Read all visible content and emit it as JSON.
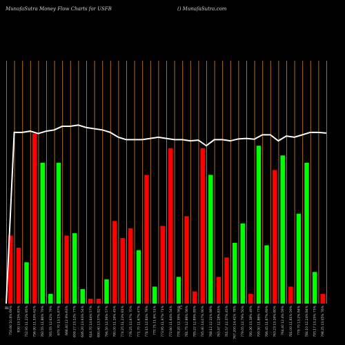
{
  "header": {
    "title_left": "MunafaSutra  Money Flow  Charts for USFB",
    "title_right": "() MunafaSutra.com"
  },
  "markers": {
    "left_m": "m",
    "center_c": "C"
  },
  "colors": {
    "up": "#00ff00",
    "down": "#ff0000",
    "grid": "#b26a1e",
    "line": "#ffffff",
    "background": "#000000",
    "text": "#cfcfcf"
  },
  "chart_data": {
    "type": "bar",
    "bars": [
      {
        "label": "750.60 10.8% 69%",
        "value": 28,
        "dir": "down"
      },
      {
        "label": "830 13.15% 83%",
        "value": 23,
        "dir": "down"
      },
      {
        "label": "752.95 11.22% 85%",
        "value": 17,
        "dir": "up"
      },
      {
        "label": "756.90 11.53% 62%",
        "value": 70,
        "dir": "down"
      },
      {
        "label": "760.55 11.86% 79%",
        "value": 58,
        "dir": "up"
      },
      {
        "label": "765.55 12.62% 79%",
        "value": 4,
        "dir": "up"
      },
      {
        "label": "670.70 13.1% 87%",
        "value": 58,
        "dir": "up"
      },
      {
        "label": "668.40 12.9% 63%",
        "value": 28,
        "dir": "down"
      },
      {
        "label": "659.27 13.12% 77%",
        "value": 29,
        "dir": "up"
      },
      {
        "label": "646.20 13.93% 54%",
        "value": 6,
        "dir": "up"
      },
      {
        "label": "614.70 14.64% 57%",
        "value": 2,
        "dir": "down"
      },
      {
        "label": "690.40 13.37% 82%",
        "value": 2,
        "dir": "down"
      },
      {
        "label": "794.50 12.56% 57%",
        "value": 10,
        "dir": "up"
      },
      {
        "label": "780.00 11.16% 45%",
        "value": 34,
        "dir": "down"
      },
      {
        "label": "774.25 11.23% 81%",
        "value": 27,
        "dir": "down"
      },
      {
        "label": "776.25 12.87% 70%",
        "value": 31,
        "dir": "down"
      },
      {
        "label": "771.70 11.67% 47%",
        "value": 22,
        "dir": "up"
      },
      {
        "label": "774.15 12.84% 78%",
        "value": 53,
        "dir": "down"
      },
      {
        "label": "770.75 11.6% 51%",
        "value": 7,
        "dir": "up"
      },
      {
        "label": "773.95 11.97% 71%",
        "value": 32,
        "dir": "down"
      },
      {
        "label": "772.60 11.64% 54%",
        "value": 64,
        "dir": "down"
      },
      {
        "label": "778.20 12.39% 56%",
        "value": 11,
        "dir": "up"
      },
      {
        "label": "781.75 12.86% 56%",
        "value": 36,
        "dir": "down"
      },
      {
        "label": "785.22 12.89% 89%",
        "value": 5,
        "dir": "down"
      },
      {
        "label": "745.40 14.07% 90%",
        "value": 64,
        "dir": "down"
      },
      {
        "label": "768.12 12.11% 88%",
        "value": 53,
        "dir": "up"
      },
      {
        "label": "763.47 12.28% 83%",
        "value": 11,
        "dir": "down"
      },
      {
        "label": "761.57 12.37% 45%",
        "value": 19,
        "dir": "down"
      },
      {
        "label": "767.200 14.41% 78%",
        "value": 25,
        "dir": "up"
      },
      {
        "label": "779.05 12.79% 50%",
        "value": 33,
        "dir": "up"
      },
      {
        "label": "780.30 13.38% 49%",
        "value": 4,
        "dir": "down"
      },
      {
        "label": "799.50 11.86% 77%",
        "value": 65,
        "dir": "up"
      },
      {
        "label": "766.45 11.67% 69%",
        "value": 24,
        "dir": "up"
      },
      {
        "label": "763.23 13.16% 80%",
        "value": 55,
        "dir": "down"
      },
      {
        "label": "764.40 12.4% 59%",
        "value": 61,
        "dir": "up"
      },
      {
        "label": "781.00 11.81% 59%",
        "value": 7,
        "dir": "down"
      },
      {
        "label": "779.70 13.2% 84%",
        "value": 37,
        "dir": "up"
      },
      {
        "label": "784.10 12.24% 84%",
        "value": 58,
        "dir": "up"
      },
      {
        "label": "793.17 13.25% 73%",
        "value": 13,
        "dir": "up"
      },
      {
        "label": "798.25 13.05% 76%",
        "value": 4,
        "dir": "down"
      }
    ],
    "line": [
      0,
      70.5,
      70.5,
      71,
      70,
      71,
      71.5,
      73,
      73,
      73.5,
      72.5,
      72,
      71.5,
      70.5,
      68.5,
      67.5,
      67.5,
      67.5,
      68,
      68.5,
      68,
      67.5,
      67.5,
      67,
      67.3,
      65,
      67.5,
      67.5,
      67,
      67.8,
      68,
      67.7,
      69.5,
      69.5,
      67,
      69,
      68.5,
      69.5,
      70.5,
      70.5,
      70.2
    ],
    "ylim": [
      0,
      100
    ],
    "grid": true
  }
}
